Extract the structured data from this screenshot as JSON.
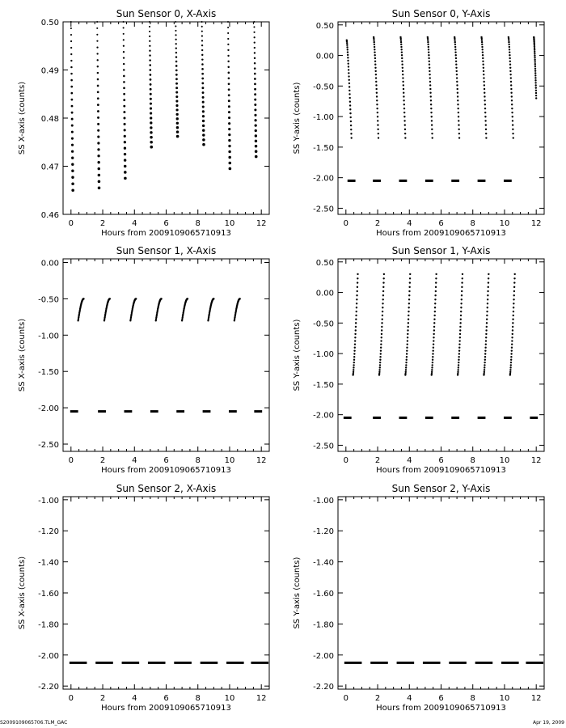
{
  "footer": {
    "left": "S2009109065706.TLM_GAC",
    "right": "Apr 19, 2009"
  },
  "chart_data": [
    {
      "type": "scatter",
      "title": "Sun Sensor 0, X-Axis",
      "xlabel": "Hours from  2009109065710913",
      "ylabel": "SS X-axis (counts)",
      "xlim": [
        -0.5,
        12.5
      ],
      "ylim": [
        0.46,
        0.5
      ],
      "xticks": [
        0,
        2,
        4,
        6,
        8,
        10,
        12
      ],
      "yticks": [
        0.46,
        0.47,
        0.48,
        0.49,
        0.5
      ],
      "ytick_labels": [
        "0.46",
        "0.47",
        "0.48",
        "0.49",
        "0.50"
      ],
      "series": [
        {
          "style": "drop",
          "x0": [
            0.0,
            1.65,
            3.3,
            4.95,
            6.6,
            8.25,
            9.9,
            11.55
          ],
          "top": [
            0.5,
            0.5,
            0.5,
            0.5,
            0.5,
            0.5,
            0.5,
            0.5
          ],
          "bottom": [
            0.465,
            0.4655,
            0.4675,
            0.474,
            0.4762,
            0.4745,
            0.4695,
            0.472
          ],
          "dx": 0.12
        }
      ]
    },
    {
      "type": "scatter",
      "title": "Sun Sensor 0, Y-Axis",
      "xlabel": "Hours from  2009109065710913",
      "ylabel": "SS Y-axis (counts)",
      "xlim": [
        -0.5,
        12.5
      ],
      "ylim": [
        -2.6,
        0.55
      ],
      "xticks": [
        0,
        2,
        4,
        6,
        8,
        10,
        12
      ],
      "yticks": [
        -2.5,
        -2.0,
        -1.5,
        -1.0,
        -0.5,
        0.0,
        0.5
      ],
      "ytick_labels": [
        "-2.50",
        "-2.00",
        "-1.50",
        "-1.00",
        "-0.50",
        "0.00",
        "0.50"
      ],
      "series": [
        {
          "style": "sweep",
          "starts": [
            0.05,
            1.75,
            3.45,
            5.15,
            6.85,
            8.55,
            10.25,
            11.85
          ],
          "ends": [
            0.35,
            2.05,
            3.75,
            5.45,
            7.15,
            8.85,
            10.55,
            12.0
          ],
          "y_start": [
            0.25,
            0.3,
            0.3,
            0.3,
            0.3,
            0.3,
            0.3,
            0.3
          ],
          "y_end": [
            -1.35,
            -1.35,
            -1.35,
            -1.35,
            -1.35,
            -1.35,
            -1.35,
            -0.7
          ]
        },
        {
          "style": "dash",
          "y": -2.05,
          "centers": [
            0.35,
            1.95,
            3.6,
            5.25,
            6.9,
            8.55,
            10.2
          ],
          "width": 0.5
        }
      ]
    },
    {
      "type": "scatter",
      "title": "Sun Sensor 1, X-Axis",
      "xlabel": "Hours from  2009109065710913",
      "ylabel": "SS X-axis (counts)",
      "xlim": [
        -0.5,
        12.5
      ],
      "ylim": [
        -2.6,
        0.05
      ],
      "xticks": [
        0,
        2,
        4,
        6,
        8,
        10,
        12
      ],
      "yticks": [
        -2.5,
        -2.0,
        -1.5,
        -1.0,
        -0.5,
        0.0
      ],
      "ytick_labels": [
        "-2.50",
        "-2.00",
        "-1.50",
        "-1.00",
        "-0.50",
        "0.00"
      ],
      "series": [
        {
          "style": "arc",
          "starts": [
            0.45,
            2.1,
            3.75,
            5.35,
            7.0,
            8.65,
            10.3
          ],
          "len": 0.35,
          "y_start": -0.8,
          "y_end": -0.5
        },
        {
          "style": "dash",
          "y": -2.05,
          "centers": [
            0.2,
            1.95,
            3.6,
            5.25,
            6.9,
            8.55,
            10.2,
            11.8
          ],
          "width": 0.5
        }
      ]
    },
    {
      "type": "scatter",
      "title": "Sun Sensor 1, Y-Axis",
      "xlabel": "Hours from  2009109065710913",
      "ylabel": "SS Y-axis (counts)",
      "xlim": [
        -0.5,
        12.5
      ],
      "ylim": [
        -2.6,
        0.55
      ],
      "xticks": [
        0,
        2,
        4,
        6,
        8,
        10,
        12
      ],
      "yticks": [
        -2.5,
        -2.0,
        -1.5,
        -1.0,
        -0.5,
        0.0,
        0.5
      ],
      "ytick_labels": [
        "-2.50",
        "-2.00",
        "-1.50",
        "-1.00",
        "-0.50",
        "0.00",
        "0.50"
      ],
      "series": [
        {
          "style": "sweep",
          "starts": [
            0.45,
            2.1,
            3.75,
            5.4,
            7.05,
            8.7,
            10.35
          ],
          "ends": [
            0.75,
            2.4,
            4.05,
            5.7,
            7.35,
            9.0,
            10.65
          ],
          "y_start": [
            -1.35,
            -1.35,
            -1.35,
            -1.35,
            -1.35,
            -1.35,
            -1.35
          ],
          "y_end": [
            0.3,
            0.3,
            0.3,
            0.3,
            0.3,
            0.3,
            0.3
          ]
        },
        {
          "style": "dash",
          "y": -2.05,
          "centers": [
            0.1,
            1.95,
            3.6,
            5.25,
            6.9,
            8.55,
            10.2,
            11.85
          ],
          "width": 0.5
        }
      ]
    },
    {
      "type": "scatter",
      "title": "Sun Sensor 2, X-Axis",
      "xlabel": "Hours from  2009109065710913",
      "ylabel": "SS X-axis (counts)",
      "xlim": [
        -0.5,
        12.5
      ],
      "ylim": [
        -2.22,
        -0.98
      ],
      "xticks": [
        0,
        2,
        4,
        6,
        8,
        10,
        12
      ],
      "yticks": [
        -2.2,
        -2.0,
        -1.8,
        -1.6,
        -1.4,
        -1.2,
        -1.0
      ],
      "ytick_labels": [
        "-2.20",
        "-2.00",
        "-1.80",
        "-1.60",
        "-1.40",
        "-1.20",
        "-1.00"
      ],
      "series": [
        {
          "style": "dash",
          "y": -2.05,
          "centers": [
            0.45,
            2.1,
            3.75,
            5.4,
            7.05,
            8.7,
            10.35,
            11.9
          ],
          "width": 1.1
        }
      ]
    },
    {
      "type": "scatter",
      "title": "Sun Sensor 2, Y-Axis",
      "xlabel": "Hours from  2009109065710913",
      "ylabel": "SS Y-axis (counts)",
      "xlim": [
        -0.5,
        12.5
      ],
      "ylim": [
        -2.22,
        -0.98
      ],
      "xticks": [
        0,
        2,
        4,
        6,
        8,
        10,
        12
      ],
      "yticks": [
        -2.2,
        -2.0,
        -1.8,
        -1.6,
        -1.4,
        -1.2,
        -1.0
      ],
      "ytick_labels": [
        "-2.20",
        "-2.00",
        "-1.80",
        "-1.60",
        "-1.40",
        "-1.20",
        "-1.00"
      ],
      "series": [
        {
          "style": "dash",
          "y": -2.05,
          "centers": [
            0.45,
            2.1,
            3.75,
            5.4,
            7.05,
            8.7,
            10.35,
            11.9
          ],
          "width": 1.1
        }
      ]
    }
  ]
}
